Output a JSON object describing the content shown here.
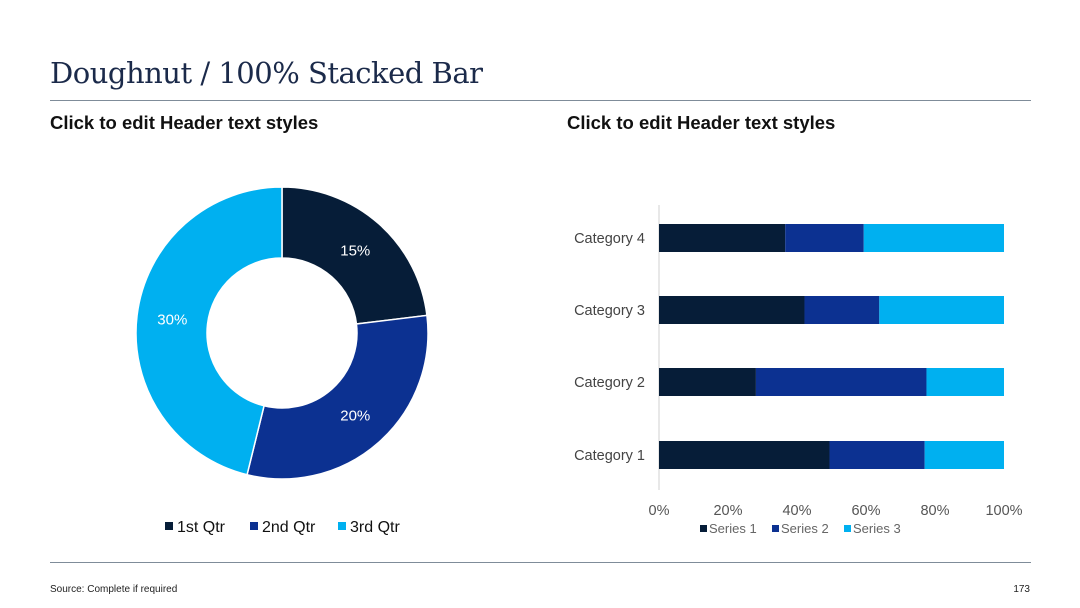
{
  "slide": {
    "title": "Doughnut / 100% Stacked Bar",
    "left_header": "Click to edit Header text styles",
    "right_header": "Click to edit Header text styles",
    "source": "Source: Complete if required",
    "page_number": "173"
  },
  "colors": {
    "dark_navy": "#061d38",
    "royal_blue": "#0c3191",
    "sky_blue": "#00b0f0"
  },
  "chart_data": [
    {
      "type": "doughnut",
      "categories": [
        "1st Qtr",
        "2nd Qtr",
        "3rd Qtr"
      ],
      "values": [
        15,
        20,
        30
      ],
      "data_labels": [
        "15%",
        "20%",
        "30%"
      ],
      "colors": [
        "#061d38",
        "#0c3191",
        "#00b0f0"
      ],
      "legend": "bottom"
    },
    {
      "type": "bar",
      "stacked": "100%",
      "orientation": "horizontal",
      "categories": [
        "Category 1",
        "Category 2",
        "Category 3",
        "Category 4"
      ],
      "series": [
        {
          "name": "Series 1",
          "values": [
            4.3,
            2.5,
            3.5,
            4.5
          ],
          "color": "#061d38"
        },
        {
          "name": "Series 2",
          "values": [
            2.4,
            4.4,
            1.8,
            2.8
          ],
          "color": "#0c3191"
        },
        {
          "name": "Series 3",
          "values": [
            2,
            2,
            3,
            5
          ],
          "color": "#00b0f0"
        }
      ],
      "x_ticks": [
        "0%",
        "20%",
        "40%",
        "60%",
        "80%",
        "100%"
      ],
      "xlim": [
        0,
        100
      ],
      "grid": false,
      "legend": "bottom"
    }
  ]
}
